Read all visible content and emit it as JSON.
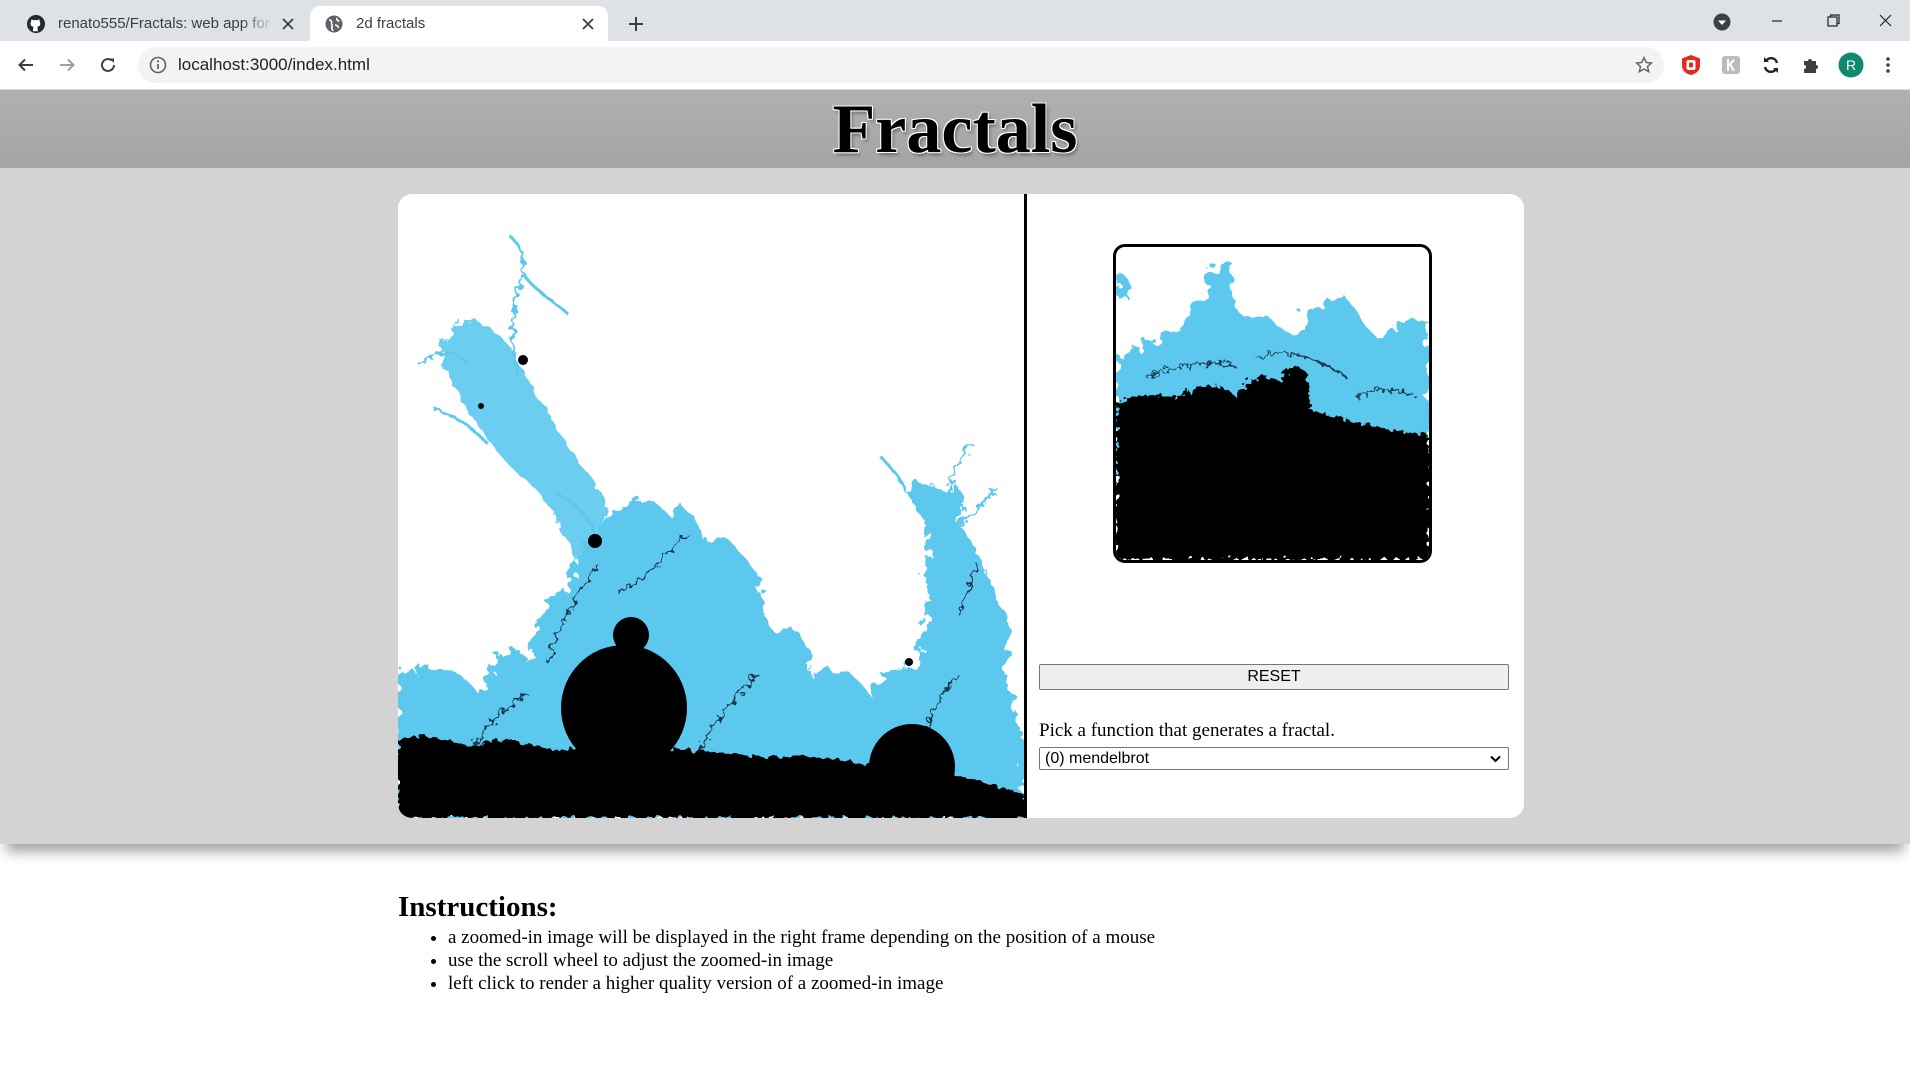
{
  "browser": {
    "tabs": [
      {
        "title": "renato555/Fractals: web app for f",
        "icon": "github-icon",
        "active": false
      },
      {
        "title": "2d fractals",
        "icon": "globe-icon",
        "active": true
      }
    ],
    "url": "localhost:3000/index.html",
    "profile_initial": "R"
  },
  "page": {
    "title": "Fractals",
    "reset_label": "RESET",
    "function_prompt": "Pick a function that generates a fractal.",
    "function_selected": "(0) mendelbrot",
    "instructions": {
      "heading": "Instructions:",
      "items": [
        "a zoomed-in image will be displayed in the right frame depending on the position of a mouse",
        "use the scroll wheel to adjust the zoomed-in image",
        "left click to render a higher quality version of a zoomed-in image"
      ]
    }
  },
  "colors": {
    "fractal_fill": "#5bc8ee",
    "fractal_dark": "#0c1a2e",
    "fractal_core": "#000000",
    "header_bg": "#a9a9a9",
    "stage_bg": "#d3d3d3"
  }
}
